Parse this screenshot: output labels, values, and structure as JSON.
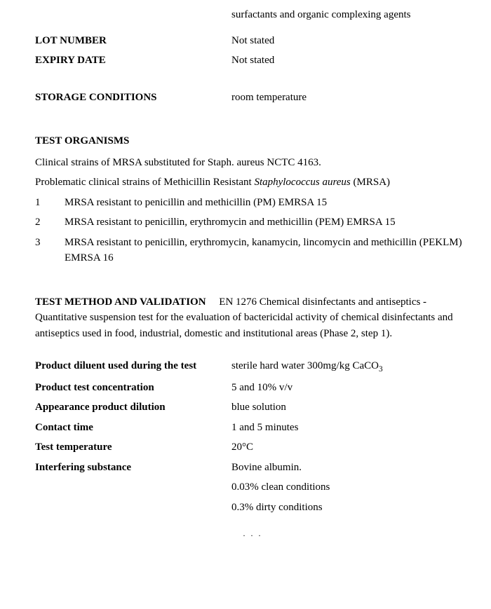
{
  "top_continuation": "surfactants and organic complexing agents",
  "info_rows_1": [
    {
      "label": "LOT NUMBER",
      "value": "Not stated"
    },
    {
      "label": "EXPIRY DATE",
      "value": "Not stated"
    }
  ],
  "info_rows_2": [
    {
      "label": "STORAGE CONDITIONS",
      "value": "room temperature"
    }
  ],
  "test_organisms": {
    "heading": "TEST ORGANISMS",
    "line1": "Clinical strains of MRSA substituted for Staph. aureus NCTC 4163.",
    "line2_a": "Problematic clinical strains of Methicillin Resistant ",
    "line2_b": "Staphylococcus aureus",
    "line2_c": " (MRSA)",
    "items": [
      {
        "num": "1",
        "text": "MRSA resistant to penicillin and methicillin (PM) EMRSA 15"
      },
      {
        "num": "2",
        "text": "MRSA resistant to penicillin, erythromycin and methicillin (PEM) EMRSA 15"
      },
      {
        "num": "3",
        "text": "MRSA resistant to penicillin, erythromycin, kanamycin, lincomycin and methicillin (PEKLM) EMRSA 16"
      }
    ]
  },
  "method": {
    "heading": "TEST METHOD AND VALIDATION",
    "body": "EN 1276 Chemical disinfectants and antiseptics - Quantitative suspension test for the evaluation of bactericidal activity of chemical disinfectants and antiseptics used in food, industrial, domestic and institutional areas (Phase 2, step 1)."
  },
  "params": [
    {
      "label": "Product diluent used during the test",
      "value_a": "sterile hard water 300mg/kg CaCO",
      "value_sub": "3"
    },
    {
      "label": "Product test concentration",
      "value_a": "5 and 10% v/v"
    },
    {
      "label": "Appearance product dilution",
      "value_a": "blue solution"
    },
    {
      "label": "Contact time",
      "value_a": "1 and 5 minutes"
    },
    {
      "label": "Test temperature",
      "value_a": "20°C"
    },
    {
      "label": "Interfering substance",
      "value_a": "Bovine albumin."
    }
  ],
  "extra_values": [
    "0.03% clean conditions",
    "0.3% dirty conditions"
  ],
  "footer_dots": "· · ·"
}
